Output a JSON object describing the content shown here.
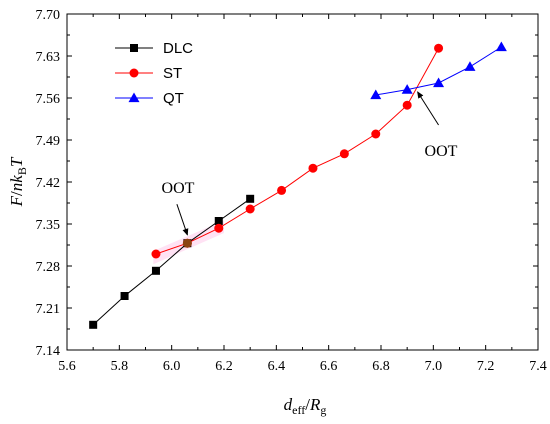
{
  "chart_data": {
    "type": "line",
    "xlabel": {
      "main": "d",
      "sub": "eff",
      "sep": "/",
      "main2": "R",
      "sub2": "g"
    },
    "ylabel": {
      "p1": "F",
      "p2": "/",
      "p3": "nk",
      "sub": "B",
      "p4": "T"
    },
    "xlim": [
      5.6,
      7.4
    ],
    "ylim": [
      7.14,
      7.7
    ],
    "xticks": [
      5.6,
      5.8,
      6.0,
      6.2,
      6.4,
      6.6,
      6.8,
      7.0,
      7.2,
      7.4
    ],
    "yticks": [
      7.14,
      7.21,
      7.28,
      7.35,
      7.42,
      7.49,
      7.56,
      7.63,
      7.7
    ],
    "grid": false,
    "legend_position": "top-left",
    "series": [
      {
        "name": "DLC",
        "color": "#000000",
        "marker": "square",
        "x": [
          5.7,
          5.82,
          5.94,
          6.06,
          6.18,
          6.3
        ],
        "y": [
          7.182,
          7.23,
          7.272,
          7.318,
          7.355,
          7.392
        ]
      },
      {
        "name": "ST",
        "color": "#ff0000",
        "marker": "circle",
        "x": [
          5.94,
          6.06,
          6.18,
          6.3,
          6.42,
          6.54,
          6.66,
          6.78,
          6.9,
          7.02
        ],
        "y": [
          7.3,
          7.318,
          7.343,
          7.375,
          7.406,
          7.443,
          7.467,
          7.5,
          7.548,
          7.643
        ]
      },
      {
        "name": "QT",
        "color": "#0000ff",
        "marker": "triangle",
        "x": [
          6.78,
          6.9,
          7.02,
          7.14,
          7.26
        ],
        "y": [
          7.565,
          7.574,
          7.585,
          7.612,
          7.645
        ]
      }
    ],
    "annotations": [
      {
        "text": "OOT",
        "x_from": 6.02,
        "y_from": 7.383,
        "x_to": 6.06,
        "y_to": 7.332
      },
      {
        "text": "OOT",
        "x_from": 7.02,
        "y_from": 7.515,
        "x_to": 6.94,
        "y_to": 7.57
      }
    ]
  }
}
